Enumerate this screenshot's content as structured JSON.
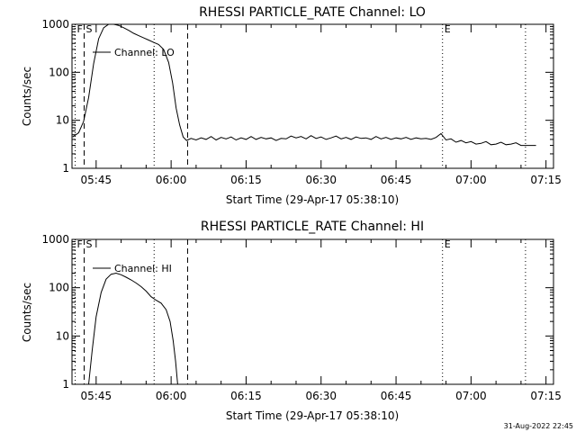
{
  "footer": {
    "timestamp": "31-Aug-2022 22:45"
  },
  "chart_data": [
    {
      "type": "line",
      "title": "RHESSI PARTICLE_RATE Channel: LO",
      "ylabel": "Counts/sec",
      "xlabel": "Start Time (29-Apr-17 05:38:10)",
      "yscale": "log",
      "ylim": [
        1,
        1000
      ],
      "xlim": [
        40.17,
        136.5
      ],
      "y_ticks": [
        1,
        10,
        100,
        1000
      ],
      "y_tick_labels": [
        "1",
        "10",
        "100",
        "1000"
      ],
      "x_ticks": [
        45,
        60,
        75,
        90,
        105,
        120,
        135
      ],
      "x_tick_labels": [
        "05:45",
        "06:00",
        "06:15",
        "06:30",
        "06:45",
        "07:00",
        "07:15"
      ],
      "legend": {
        "label": "Channel: LO",
        "position": "top-left"
      },
      "markers": [
        {
          "time": 40.8,
          "style": "dotted",
          "label": "F"
        },
        {
          "time": 42.6,
          "style": "dashed",
          "label": "S"
        },
        {
          "time": 56.6,
          "style": "dotted",
          "label": ""
        },
        {
          "time": 63.3,
          "style": "dashed",
          "label": ""
        },
        {
          "time": 114.3,
          "style": "dotted",
          "label": "E"
        },
        {
          "time": 130.9,
          "style": "dotted",
          "label": ""
        }
      ],
      "series": [
        {
          "name": "Channel: LO",
          "x": [
            40.3,
            41.5,
            42.5,
            43.5,
            44.5,
            45.5,
            46.5,
            47.5,
            48.5,
            49.5,
            50.5,
            51.5,
            52.5,
            53.5,
            54.5,
            55.5,
            56.5,
            57.5,
            58.5,
            59.5,
            60.3,
            61,
            61.7,
            62.4,
            63.1,
            64,
            65,
            66,
            67,
            68,
            69,
            70,
            71,
            72,
            73,
            74,
            75,
            76,
            77,
            78,
            79,
            80,
            81,
            82,
            83,
            84,
            85,
            86,
            87,
            88,
            89,
            90,
            91,
            92,
            93,
            94,
            95,
            96,
            97,
            98,
            99,
            100,
            101,
            102,
            103,
            104,
            105,
            106,
            107,
            108,
            109,
            110,
            111,
            112,
            113,
            114,
            115,
            116,
            117,
            118,
            119,
            120,
            121,
            122,
            123,
            124,
            125,
            126,
            127,
            128,
            129,
            130,
            131,
            132,
            133
          ],
          "values": [
            4.5,
            5.5,
            9.5,
            30,
            150,
            500,
            850,
            1000,
            1000,
            950,
            850,
            750,
            650,
            580,
            520,
            470,
            420,
            380,
            300,
            160,
            60,
            18,
            8,
            4.5,
            3.8,
            4.2,
            3.9,
            4.3,
            4.0,
            4.6,
            3.9,
            4.4,
            4.1,
            4.5,
            3.9,
            4.3,
            4.0,
            4.6,
            4.0,
            4.4,
            4.1,
            4.3,
            3.8,
            4.2,
            4.1,
            4.7,
            4.3,
            4.6,
            4.1,
            4.8,
            4.2,
            4.5,
            4.0,
            4.3,
            4.7,
            4.1,
            4.4,
            4.0,
            4.5,
            4.2,
            4.3,
            4.0,
            4.6,
            4.1,
            4.4,
            4.0,
            4.3,
            4.1,
            4.4,
            4.0,
            4.3,
            4.1,
            4.2,
            4.0,
            4.4,
            5.3,
            3.9,
            4.1,
            3.5,
            3.8,
            3.4,
            3.6,
            3.2,
            3.3,
            3.6,
            3.1,
            3.2,
            3.5,
            3.1,
            3.2,
            3.4,
            3.0,
            3.0,
            3.0,
            3.0
          ]
        }
      ]
    },
    {
      "type": "line",
      "title": "RHESSI PARTICLE_RATE Channel: HI",
      "ylabel": "Counts/sec",
      "xlabel": "Start Time (29-Apr-17 05:38:10)",
      "yscale": "log",
      "ylim": [
        1,
        1000
      ],
      "xlim": [
        40.17,
        136.5
      ],
      "y_ticks": [
        1,
        10,
        100,
        1000
      ],
      "y_tick_labels": [
        "1",
        "10",
        "100",
        "1000"
      ],
      "x_ticks": [
        45,
        60,
        75,
        90,
        105,
        120,
        135
      ],
      "x_tick_labels": [
        "05:45",
        "06:00",
        "06:15",
        "06:30",
        "06:45",
        "07:00",
        "07:15"
      ],
      "legend": {
        "label": "Channel: HI",
        "position": "top-left"
      },
      "markers": [
        {
          "time": 40.8,
          "style": "dotted",
          "label": "F"
        },
        {
          "time": 42.6,
          "style": "dashed",
          "label": "S"
        },
        {
          "time": 56.6,
          "style": "dotted",
          "label": ""
        },
        {
          "time": 63.3,
          "style": "dashed",
          "label": ""
        },
        {
          "time": 114.3,
          "style": "dotted",
          "label": "E"
        },
        {
          "time": 130.9,
          "style": "dotted",
          "label": ""
        }
      ],
      "series": [
        {
          "name": "Channel: HI",
          "x": [
            43.5,
            44.2,
            45,
            46,
            47,
            48,
            49,
            50,
            51,
            52,
            53,
            54,
            55,
            56,
            57,
            58,
            59,
            59.8,
            60.4,
            60.9,
            61.3
          ],
          "values": [
            1.0,
            5,
            25,
            80,
            150,
            190,
            200,
            185,
            165,
            145,
            125,
            105,
            85,
            65,
            55,
            48,
            35,
            20,
            8,
            3,
            1.0
          ]
        }
      ]
    }
  ]
}
